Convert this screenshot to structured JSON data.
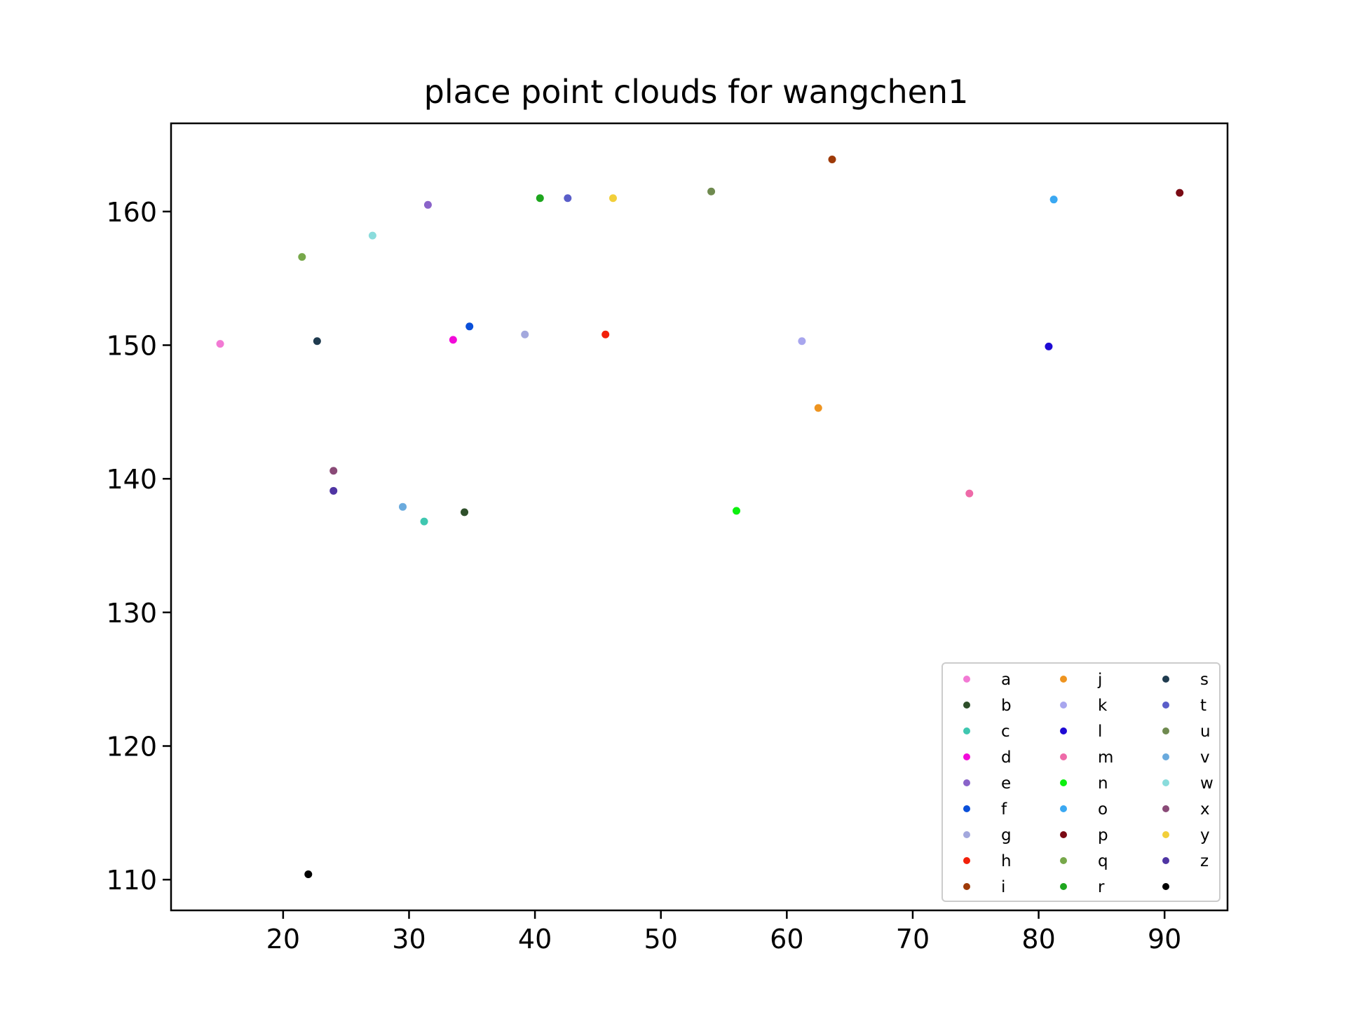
{
  "chart_data": {
    "type": "scatter",
    "title": "place point clouds for wangchen1",
    "xlabel": "",
    "ylabel": "",
    "xlim": [
      11.1,
      95.0
    ],
    "ylim": [
      107.7,
      166.6
    ],
    "xticks": [
      20,
      30,
      40,
      50,
      60,
      70,
      80,
      90
    ],
    "yticks": [
      110,
      120,
      130,
      140,
      150,
      160
    ],
    "grid": false,
    "legend_position": "lower-right",
    "legend_columns": 3,
    "series": [
      {
        "name": "a",
        "color": "#f27ad4",
        "x": 15.0,
        "y": 150.1
      },
      {
        "name": "b",
        "color": "#2e4f2a",
        "x": 34.4,
        "y": 137.5
      },
      {
        "name": "c",
        "color": "#3fc7b0",
        "x": 31.2,
        "y": 136.8
      },
      {
        "name": "d",
        "color": "#f20ad9",
        "x": 33.5,
        "y": 150.4
      },
      {
        "name": "e",
        "color": "#8a63c9",
        "x": 31.5,
        "y": 160.5
      },
      {
        "name": "f",
        "color": "#0a4fd9",
        "x": 34.8,
        "y": 151.4
      },
      {
        "name": "g",
        "color": "#a3a8dd",
        "x": 39.2,
        "y": 150.8
      },
      {
        "name": "h",
        "color": "#f2200a",
        "x": 45.6,
        "y": 150.8
      },
      {
        "name": "i",
        "color": "#9e3a08",
        "x": 63.6,
        "y": 163.9
      },
      {
        "name": "j",
        "color": "#ee9420",
        "x": 62.5,
        "y": 145.3
      },
      {
        "name": "k",
        "color": "#a8a6ee",
        "x": 61.2,
        "y": 150.3
      },
      {
        "name": "l",
        "color": "#1e0ad4",
        "x": 80.8,
        "y": 149.9
      },
      {
        "name": "m",
        "color": "#ee6aa8",
        "x": 74.5,
        "y": 138.9
      },
      {
        "name": "n",
        "color": "#0df00f",
        "x": 56.0,
        "y": 137.6
      },
      {
        "name": "o",
        "color": "#3aa8f2",
        "x": 81.2,
        "y": 160.9
      },
      {
        "name": "p",
        "color": "#7a0a14",
        "x": 91.2,
        "y": 161.4
      },
      {
        "name": "q",
        "color": "#77a84a",
        "x": 21.5,
        "y": 156.6
      },
      {
        "name": "r",
        "color": "#1ea61e",
        "x": 40.4,
        "y": 161.0
      },
      {
        "name": "s",
        "color": "#1f3b4f",
        "x": 22.7,
        "y": 150.3
      },
      {
        "name": "t",
        "color": "#5a5ec9",
        "x": 42.6,
        "y": 161.0
      },
      {
        "name": "u",
        "color": "#6f8a4f",
        "x": 54.0,
        "y": 161.5
      },
      {
        "name": "v",
        "color": "#6aaadd",
        "x": 29.5,
        "y": 137.9
      },
      {
        "name": "w",
        "color": "#8adcdc",
        "x": 27.1,
        "y": 158.2
      },
      {
        "name": "x",
        "color": "#8a4a77",
        "x": 24.0,
        "y": 140.6
      },
      {
        "name": "y",
        "color": "#f2cf3a",
        "x": 46.2,
        "y": 161.0
      },
      {
        "name": "z",
        "color": "#4f35a3",
        "x": 24.0,
        "y": 139.1
      },
      {
        "name": "",
        "color": "#000000",
        "x": 22.0,
        "y": 110.4
      }
    ]
  }
}
